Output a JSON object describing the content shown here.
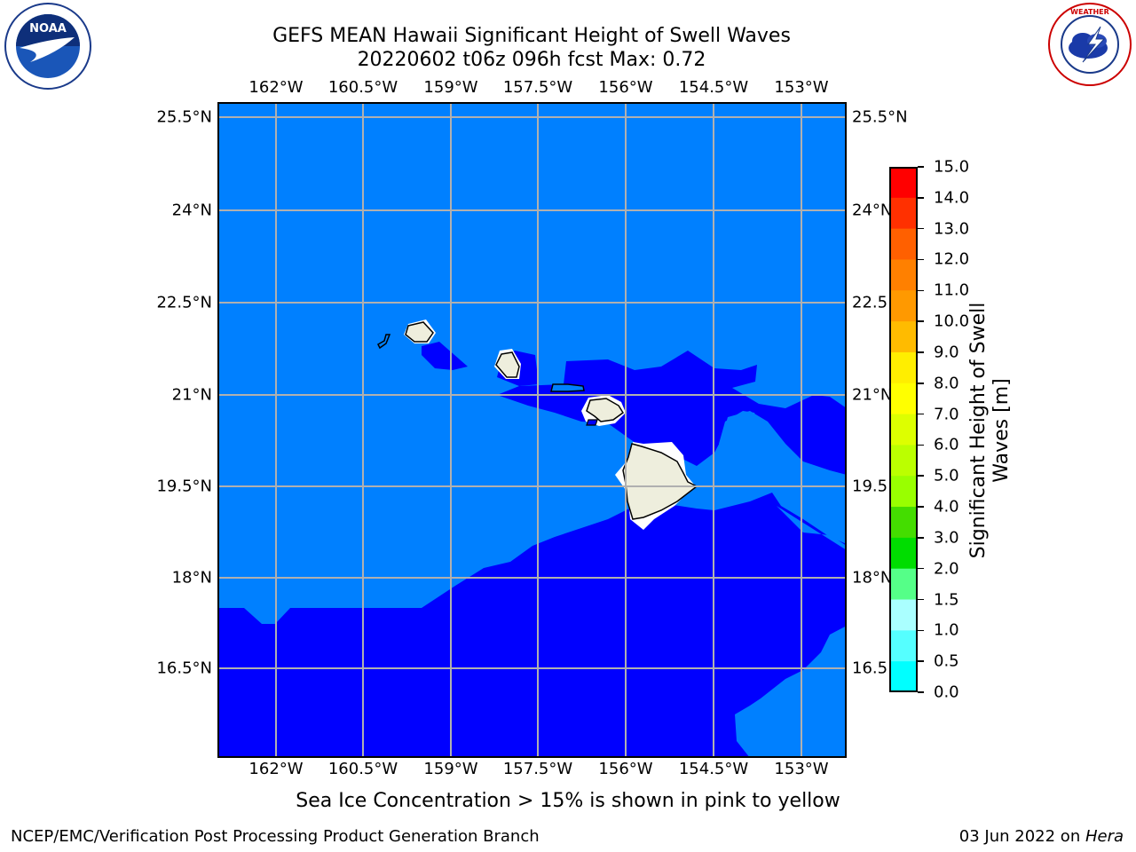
{
  "header": {
    "title_line1": "GEFS MEAN Hawaii Significant Height of Swell Waves",
    "title_line2": "20220602 t06z 096h fcst   Max: 0.72"
  },
  "logos": {
    "left": {
      "name": "noaa-logo",
      "text": "NOAA",
      "ring_text": "NATIONAL OCEANIC AND ATMOSPHERIC ADMINISTRATION · U.S. DEPARTMENT OF COMMERCE"
    },
    "right": {
      "name": "nws-logo",
      "ring_text": "NATIONAL WEATHER SERVICE"
    }
  },
  "map": {
    "lon_labels": [
      "162°W",
      "160.5°W",
      "159°W",
      "157.5°W",
      "156°W",
      "154.5°W",
      "153°W"
    ],
    "lat_labels_left": [
      "25.5°N",
      "24°N",
      "22.5°N",
      "21°N",
      "19.5°N",
      "18°N",
      "16.5°N"
    ],
    "lat_labels_right": [
      "25.5°N",
      "24°N",
      "22.5",
      "21°N",
      "19.5",
      "18°N",
      "16.5"
    ],
    "colors": {
      "light_blue": "#0080ff",
      "dark_blue": "#0000ff",
      "land": "#eeeedd",
      "grid": "#b0b0b0"
    }
  },
  "colorbar": {
    "label_line1": "Significant Height of Swell",
    "label_line2": "Waves [m]",
    "ticks": [
      "15.0",
      "14.0",
      "13.0",
      "12.0",
      "11.0",
      "10.0",
      "9.0",
      "8.0",
      "7.0",
      "6.0",
      "5.0",
      "4.0",
      "3.0",
      "2.0",
      "1.5",
      "1.0",
      "0.5",
      "0.0"
    ],
    "colors_top_to_bottom": [
      "#ff0000",
      "#ff3000",
      "#ff6000",
      "#ff8000",
      "#ff9900",
      "#ffbb00",
      "#ffee00",
      "#ffff00",
      "#ddff00",
      "#bbff00",
      "#99ff00",
      "#44dd00",
      "#00dd00",
      "#55ff88",
      "#aaffff",
      "#55ffff",
      "#00ffff",
      "#0080ff",
      "#0000ff"
    ]
  },
  "note": "Sea Ice Concentration > 15% is shown in pink to yellow",
  "footer": {
    "left": "NCEP/EMC/Verification Post Processing Product Generation Branch",
    "date": "03 Jun 2022 on ",
    "machine": "Hera"
  }
}
